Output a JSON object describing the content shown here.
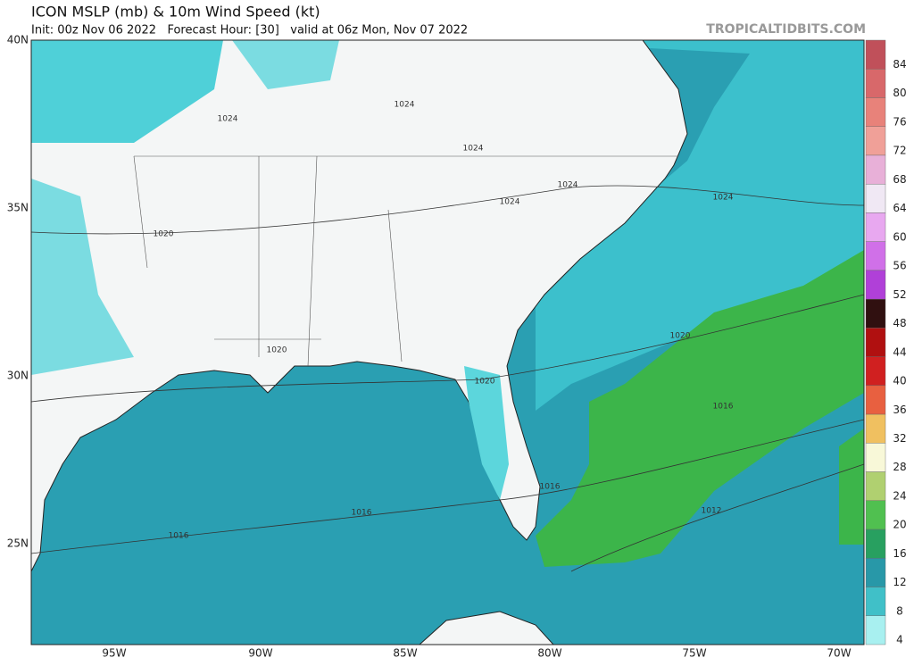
{
  "header": {
    "title": "ICON MSLP (mb) & 10m Wind Speed (kt)",
    "subtitle": "Init: 00z Nov 06 2022   Forecast Hour: [30]   valid at 06z Mon, Nov 07 2022",
    "watermark": "TROPICALTIDBITS.COM"
  },
  "map": {
    "lat_labels": [
      "40N",
      "35N",
      "30N",
      "25N"
    ],
    "lon_labels": [
      "95W",
      "90W",
      "85W",
      "80W",
      "75W",
      "70W"
    ],
    "isobar_labels": [
      "1024",
      "1024",
      "1024",
      "1024",
      "1024",
      "1024",
      "1020",
      "1020",
      "1020",
      "1020",
      "1016",
      "1016",
      "1016",
      "1016",
      "1012"
    ]
  },
  "colorbar": {
    "labels": [
      84,
      80,
      76,
      72,
      68,
      64,
      60,
      56,
      52,
      48,
      44,
      40,
      36,
      32,
      28,
      24,
      20,
      16,
      12,
      8,
      4
    ],
    "colors": [
      "#c0505a",
      "#d8686a",
      "#e8827a",
      "#f0a098",
      "#e8b0d8",
      "#f0e8f4",
      "#e8a8f0",
      "#d070e8",
      "#b040d8",
      "#301010",
      "#b01010",
      "#d02020",
      "#e86040",
      "#f0c060",
      "#f8f8d8",
      "#b0d070",
      "#50c050",
      "#28a060",
      "#2898a8",
      "#40c0c8",
      "#a8f0f0"
    ]
  }
}
